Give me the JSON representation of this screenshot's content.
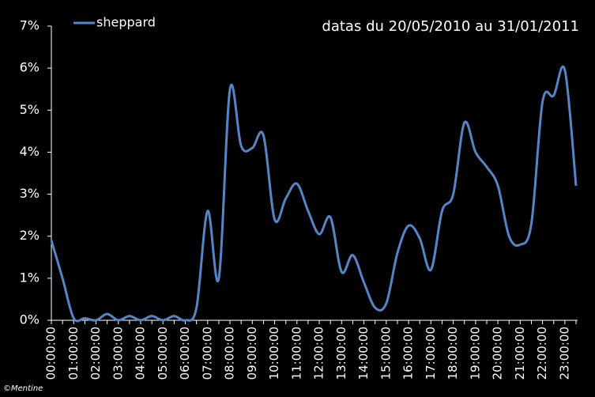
{
  "chart_data": {
    "type": "line",
    "annotation": "datas du 20/05/2010 au 31/01/2011",
    "credit": "©Mentine",
    "categories": [
      "00:00:00",
      null,
      "01:00:00",
      null,
      "02:00:00",
      null,
      "03:00:00",
      null,
      "04:00:00",
      null,
      "05:00:00",
      null,
      "06:00:00",
      null,
      "07:00:00",
      null,
      "08:00:00",
      null,
      "09:00:00",
      null,
      "10:00:00",
      null,
      "11:00:00",
      null,
      "12:00:00",
      null,
      "13:00:00",
      null,
      "14:00:00",
      null,
      "15:00:00",
      null,
      "16:00:00",
      null,
      "17:00:00",
      null,
      "18:00:00",
      null,
      "19:00:00",
      null,
      "20:00:00",
      null,
      "21:00:00",
      null,
      "22:00:00",
      null,
      "23:00:00",
      null
    ],
    "series": [
      {
        "name": "sheppard",
        "color": "#5585c6",
        "values": [
          1.9,
          1.0,
          0.05,
          0.05,
          0,
          0.15,
          0,
          0.1,
          0,
          0.1,
          0,
          0.1,
          0,
          0.3,
          2.6,
          1.0,
          5.5,
          4.15,
          4.1,
          4.4,
          2.4,
          2.9,
          3.25,
          2.6,
          2.05,
          2.45,
          1.15,
          1.55,
          0.9,
          0.3,
          0.4,
          1.6,
          2.25,
          1.95,
          1.2,
          2.6,
          3.0,
          4.7,
          4.0,
          3.65,
          3.2,
          2.0,
          1.8,
          2.3,
          5.2,
          5.35,
          5.95,
          3.2
        ]
      }
    ],
    "ylim": [
      0,
      7
    ],
    "yticks": [
      {
        "value": 0,
        "label": "0%"
      },
      {
        "value": 1,
        "label": "1%"
      },
      {
        "value": 2,
        "label": "2%"
      },
      {
        "value": 3,
        "label": "3%"
      },
      {
        "value": 4,
        "label": "4%"
      },
      {
        "value": 5,
        "label": "5%"
      },
      {
        "value": 6,
        "label": "6%"
      },
      {
        "value": 7,
        "label": "7%"
      }
    ],
    "legend": "top-left"
  }
}
